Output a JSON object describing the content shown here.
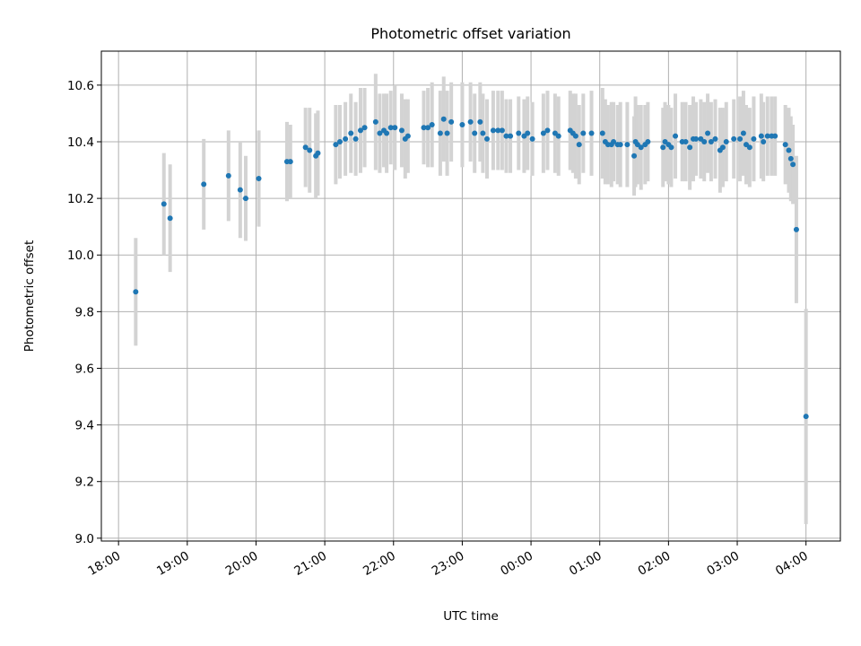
{
  "chart_data": {
    "type": "scatter",
    "title": "Photometric offset variation",
    "xlabel": "UTC time",
    "ylabel": "Photometric offset",
    "xlim_hours": [
      17.75,
      28.5
    ],
    "ylim": [
      8.99,
      10.72
    ],
    "grid": true,
    "x_ticks": [
      {
        "hour": 18,
        "label": "18:00"
      },
      {
        "hour": 19,
        "label": "19:00"
      },
      {
        "hour": 20,
        "label": "20:00"
      },
      {
        "hour": 21,
        "label": "21:00"
      },
      {
        "hour": 22,
        "label": "22:00"
      },
      {
        "hour": 23,
        "label": "23:00"
      },
      {
        "hour": 24,
        "label": "00:00"
      },
      {
        "hour": 25,
        "label": "01:00"
      },
      {
        "hour": 26,
        "label": "02:00"
      },
      {
        "hour": 27,
        "label": "03:00"
      },
      {
        "hour": 28,
        "label": "04:00"
      }
    ],
    "y_ticks": [
      {
        "value": 9.0,
        "label": "9.0"
      },
      {
        "value": 9.2,
        "label": "9.2"
      },
      {
        "value": 9.4,
        "label": "9.4"
      },
      {
        "value": 9.6,
        "label": "9.6"
      },
      {
        "value": 9.8,
        "label": "9.8"
      },
      {
        "value": 10.0,
        "label": "10.0"
      },
      {
        "value": 10.2,
        "label": "10.2"
      },
      {
        "value": 10.4,
        "label": "10.4"
      },
      {
        "value": 10.6,
        "label": "10.6"
      }
    ],
    "colors": {
      "point": "#1f77b4",
      "errorbar": "#d3d3d3",
      "grid": "#b0b0b0"
    },
    "series": [
      {
        "name": "photometric offset",
        "points": [
          [
            18.25,
            9.87,
            0.19
          ],
          [
            18.66,
            10.18,
            0.18
          ],
          [
            18.75,
            10.13,
            0.19
          ],
          [
            19.24,
            10.25,
            0.16
          ],
          [
            19.6,
            10.28,
            0.16
          ],
          [
            19.77,
            10.23,
            0.17
          ],
          [
            19.85,
            10.2,
            0.15
          ],
          [
            20.04,
            10.27,
            0.17
          ],
          [
            20.45,
            10.33,
            0.14
          ],
          [
            20.5,
            10.33,
            0.13
          ],
          [
            20.72,
            10.38,
            0.14
          ],
          [
            20.78,
            10.37,
            0.15
          ],
          [
            20.87,
            10.35,
            0.15
          ],
          [
            20.9,
            10.36,
            0.15
          ],
          [
            21.16,
            10.39,
            0.14
          ],
          [
            21.22,
            10.4,
            0.13
          ],
          [
            21.3,
            10.41,
            0.13
          ],
          [
            21.38,
            10.43,
            0.14
          ],
          [
            21.45,
            10.41,
            0.13
          ],
          [
            21.52,
            10.44,
            0.15
          ],
          [
            21.58,
            10.45,
            0.14
          ],
          [
            21.74,
            10.47,
            0.17
          ],
          [
            21.8,
            10.43,
            0.14
          ],
          [
            21.86,
            10.44,
            0.13
          ],
          [
            21.9,
            10.43,
            0.14
          ],
          [
            21.96,
            10.45,
            0.13
          ],
          [
            22.02,
            10.45,
            0.15
          ],
          [
            22.12,
            10.44,
            0.13
          ],
          [
            22.17,
            10.41,
            0.14
          ],
          [
            22.21,
            10.42,
            0.13
          ],
          [
            22.44,
            10.45,
            0.13
          ],
          [
            22.5,
            10.45,
            0.14
          ],
          [
            22.56,
            10.46,
            0.15
          ],
          [
            22.68,
            10.43,
            0.15
          ],
          [
            22.73,
            10.48,
            0.15
          ],
          [
            22.78,
            10.43,
            0.15
          ],
          [
            22.84,
            10.47,
            0.14
          ],
          [
            23.0,
            10.46,
            0.15
          ],
          [
            23.12,
            10.47,
            0.14
          ],
          [
            23.18,
            10.43,
            0.14
          ],
          [
            23.26,
            10.47,
            0.14
          ],
          [
            23.3,
            10.43,
            0.14
          ],
          [
            23.36,
            10.41,
            0.14
          ],
          [
            23.45,
            10.44,
            0.14
          ],
          [
            23.52,
            10.44,
            0.14
          ],
          [
            23.58,
            10.44,
            0.14
          ],
          [
            23.64,
            10.42,
            0.13
          ],
          [
            23.7,
            10.42,
            0.13
          ],
          [
            23.82,
            10.43,
            0.13
          ],
          [
            23.9,
            10.42,
            0.13
          ],
          [
            23.95,
            10.43,
            0.13
          ],
          [
            24.02,
            10.41,
            0.13
          ],
          [
            24.18,
            10.43,
            0.14
          ],
          [
            24.24,
            10.44,
            0.14
          ],
          [
            24.35,
            10.43,
            0.14
          ],
          [
            24.4,
            10.42,
            0.14
          ],
          [
            24.57,
            10.44,
            0.14
          ],
          [
            24.61,
            10.43,
            0.14
          ],
          [
            24.65,
            10.42,
            0.15
          ],
          [
            24.7,
            10.39,
            0.14
          ],
          [
            24.76,
            10.43,
            0.14
          ],
          [
            24.88,
            10.43,
            0.15
          ],
          [
            25.04,
            10.43,
            0.16
          ],
          [
            25.08,
            10.4,
            0.15
          ],
          [
            25.12,
            10.39,
            0.14
          ],
          [
            25.17,
            10.39,
            0.15
          ],
          [
            25.2,
            10.4,
            0.14
          ],
          [
            25.26,
            10.39,
            0.14
          ],
          [
            25.3,
            10.39,
            0.15
          ],
          [
            25.4,
            10.39,
            0.15
          ],
          [
            25.5,
            10.35,
            0.14
          ],
          [
            25.52,
            10.4,
            0.16
          ],
          [
            25.55,
            10.39,
            0.14
          ],
          [
            25.6,
            10.38,
            0.15
          ],
          [
            25.66,
            10.39,
            0.14
          ],
          [
            25.7,
            10.4,
            0.14
          ],
          [
            25.92,
            10.38,
            0.14
          ],
          [
            25.95,
            10.4,
            0.14
          ],
          [
            26.0,
            10.39,
            0.14
          ],
          [
            26.04,
            10.38,
            0.14
          ],
          [
            26.1,
            10.42,
            0.15
          ],
          [
            26.2,
            10.4,
            0.14
          ],
          [
            26.25,
            10.4,
            0.14
          ],
          [
            26.31,
            10.38,
            0.15
          ],
          [
            26.36,
            10.41,
            0.15
          ],
          [
            26.4,
            10.41,
            0.13
          ],
          [
            26.47,
            10.41,
            0.14
          ],
          [
            26.52,
            10.4,
            0.14
          ],
          [
            26.57,
            10.43,
            0.14
          ],
          [
            26.62,
            10.4,
            0.14
          ],
          [
            26.68,
            10.41,
            0.14
          ],
          [
            26.75,
            10.37,
            0.15
          ],
          [
            26.79,
            10.38,
            0.14
          ],
          [
            26.84,
            10.4,
            0.14
          ],
          [
            26.95,
            10.41,
            0.14
          ],
          [
            27.04,
            10.41,
            0.15
          ],
          [
            27.09,
            10.43,
            0.15
          ],
          [
            27.13,
            10.39,
            0.14
          ],
          [
            27.18,
            10.38,
            0.14
          ],
          [
            27.24,
            10.41,
            0.15
          ],
          [
            27.35,
            10.42,
            0.15
          ],
          [
            27.38,
            10.4,
            0.14
          ],
          [
            27.44,
            10.42,
            0.14
          ],
          [
            27.5,
            10.42,
            0.14
          ],
          [
            27.55,
            10.42,
            0.14
          ],
          [
            27.7,
            10.39,
            0.14
          ],
          [
            27.75,
            10.37,
            0.15
          ],
          [
            27.78,
            10.34,
            0.15
          ],
          [
            27.81,
            10.32,
            0.14
          ],
          [
            27.86,
            10.09,
            0.26
          ],
          [
            28.0,
            9.43,
            0.38
          ]
        ]
      }
    ]
  }
}
